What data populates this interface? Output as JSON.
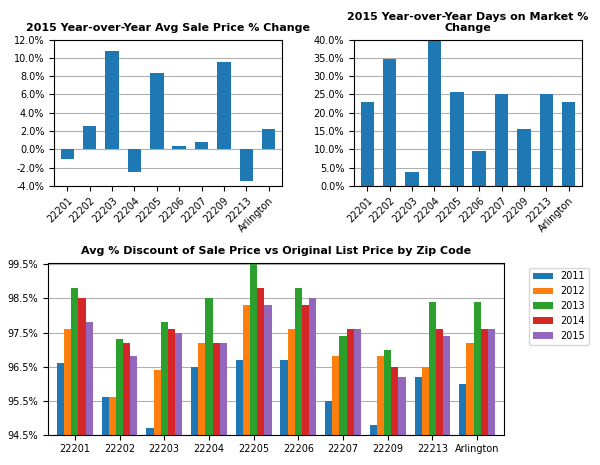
{
  "chart_data": [
    {
      "type": "bar",
      "title": "2015 Year-over-Year Avg Sale Price % Change",
      "categories": [
        "22201",
        "22202",
        "22203",
        "22204",
        "22205",
        "22206",
        "22207",
        "22209",
        "22213",
        "Arlington"
      ],
      "values": [
        -1.0,
        2.6,
        10.8,
        -2.5,
        8.3,
        0.4,
        0.8,
        9.5,
        -3.5,
        2.2
      ],
      "ylim": [
        -4,
        12
      ],
      "yticks": [
        {
          "value": -4,
          "label": "-4.0%"
        },
        {
          "value": -2,
          "label": "-2.0%"
        },
        {
          "value": 0,
          "label": "0.0%"
        },
        {
          "value": 2,
          "label": "2.0%"
        },
        {
          "value": 4,
          "label": "4.0%"
        },
        {
          "value": 6,
          "label": "6.0%"
        },
        {
          "value": 8,
          "label": "8.0%"
        },
        {
          "value": 10,
          "label": "10.0%"
        },
        {
          "value": 12,
          "label": "12.0%"
        }
      ],
      "grid": true
    },
    {
      "type": "bar",
      "title": "2015 Year-over-Year Days on Market %\nChange",
      "categories": [
        "22201",
        "22202",
        "22203",
        "22204",
        "22205",
        "22206",
        "22207",
        "22209",
        "22213",
        "Arlington"
      ],
      "values": [
        23.0,
        34.8,
        3.8,
        39.5,
        25.8,
        9.5,
        25.2,
        15.6,
        25.2,
        23.0
      ],
      "ylim": [
        0,
        40
      ],
      "yticks": [
        {
          "value": 0,
          "label": "0.0%"
        },
        {
          "value": 5,
          "label": "5.0%"
        },
        {
          "value": 10,
          "label": "10.0%"
        },
        {
          "value": 15,
          "label": "15.0%"
        },
        {
          "value": 20,
          "label": "20.0%"
        },
        {
          "value": 25,
          "label": "25.0%"
        },
        {
          "value": 30,
          "label": "30.0%"
        },
        {
          "value": 35,
          "label": "35.0%"
        },
        {
          "value": 40,
          "label": "40.0%"
        }
      ],
      "grid": true
    },
    {
      "type": "bar",
      "title": "Avg % Discount of Sale Price vs Original List Price by Zip Code",
      "categories": [
        "22201",
        "22202",
        "22203",
        "22204",
        "22205",
        "22206",
        "22207",
        "22209",
        "22213",
        "Arlington"
      ],
      "series": [
        {
          "name": "2011",
          "values": [
            96.6,
            95.6,
            94.7,
            96.5,
            96.7,
            96.7,
            95.5,
            94.8,
            96.2,
            96.0
          ]
        },
        {
          "name": "2012",
          "values": [
            97.6,
            95.6,
            96.4,
            97.2,
            98.3,
            97.6,
            96.8,
            96.8,
            96.5,
            97.2
          ]
        },
        {
          "name": "2013",
          "values": [
            98.8,
            97.3,
            97.8,
            98.5,
            99.5,
            98.8,
            97.4,
            97.0,
            98.4,
            98.4
          ]
        },
        {
          "name": "2014",
          "values": [
            98.5,
            97.2,
            97.6,
            97.2,
            98.8,
            98.3,
            97.6,
            96.5,
            97.6,
            97.6
          ]
        },
        {
          "name": "2015",
          "values": [
            97.8,
            96.8,
            97.5,
            97.2,
            98.3,
            98.5,
            97.6,
            96.2,
            97.4,
            97.6
          ]
        }
      ],
      "ylim": [
        94.5,
        99.55
      ],
      "yticks": [
        {
          "value": 94.5,
          "label": "94.5%"
        },
        {
          "value": 95.5,
          "label": "95.5%"
        },
        {
          "value": 96.5,
          "label": "96.5%"
        },
        {
          "value": 97.5,
          "label": "97.5%"
        },
        {
          "value": 98.5,
          "label": "98.5%"
        },
        {
          "value": 99.5,
          "label": "99.5%"
        }
      ],
      "grid": true,
      "legend": "upper right"
    }
  ]
}
